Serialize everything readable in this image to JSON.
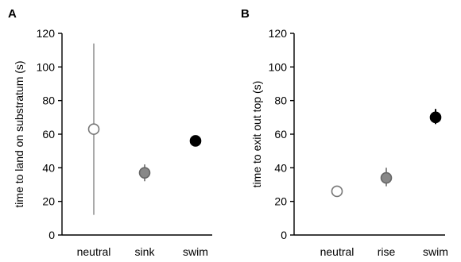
{
  "chart_data": [
    {
      "type": "scatter",
      "panel_label": "A",
      "ylabel": "time to land on substratum (s)",
      "xlabel": "",
      "ylim": [
        0,
        120
      ],
      "yticks": [
        0,
        20,
        40,
        60,
        80,
        100,
        120
      ],
      "categories": [
        "neutral",
        "sink",
        "swim"
      ],
      "series": [
        {
          "values": [
            63,
            37,
            56
          ],
          "error_low": [
            12,
            32,
            56
          ],
          "error_high": [
            114,
            42,
            56
          ],
          "marker_fill": [
            "#ffffff",
            "#888888",
            "#000000"
          ],
          "marker_stroke": [
            "#777777",
            "#666666",
            "#000000"
          ],
          "error_color": [
            "#aaaaaa",
            "#888888",
            "#000000"
          ]
        }
      ],
      "grid": false,
      "legend": "none"
    },
    {
      "type": "scatter",
      "panel_label": "B",
      "ylabel": "time to exit out top (s)",
      "xlabel": "",
      "ylim": [
        0,
        120
      ],
      "yticks": [
        0,
        20,
        40,
        60,
        80,
        100,
        120
      ],
      "categories": [
        "neutral",
        "rise",
        "swim"
      ],
      "series": [
        {
          "values": [
            26,
            34,
            70
          ],
          "error_low": [
            26,
            29,
            66
          ],
          "error_high": [
            26,
            40,
            75
          ],
          "marker_fill": [
            "#ffffff",
            "#888888",
            "#000000"
          ],
          "marker_stroke": [
            "#777777",
            "#666666",
            "#000000"
          ],
          "error_color": [
            "#aaaaaa",
            "#888888",
            "#000000"
          ]
        }
      ],
      "grid": false,
      "legend": "none"
    }
  ]
}
